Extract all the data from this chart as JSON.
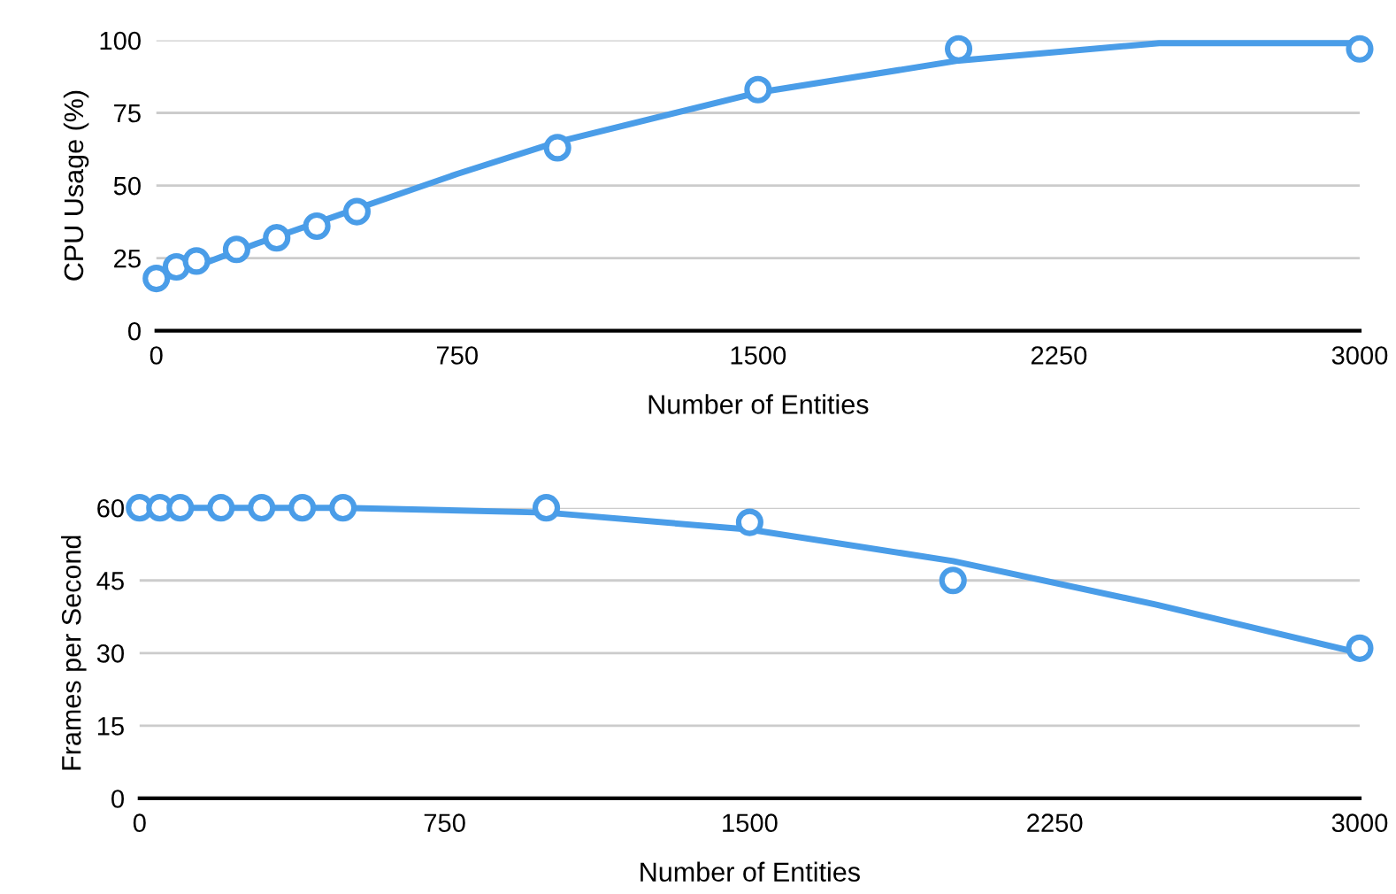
{
  "chart_data": [
    {
      "type": "scatter",
      "xlabel": "Number of Entities",
      "ylabel": "CPU Usage (%)",
      "xlim": [
        0,
        3000
      ],
      "xticks": [
        0,
        750,
        1500,
        2250,
        3000
      ],
      "ylim": [
        0,
        100
      ],
      "yticks": [
        0,
        25,
        50,
        75,
        100
      ],
      "grid": "y",
      "legend": false,
      "series": [
        {
          "color": "#4a9de8",
          "marker": "circle",
          "x": [
            0,
            50,
            100,
            200,
            300,
            400,
            500,
            1000,
            1500,
            2000,
            3000
          ],
          "values": [
            18,
            22,
            24,
            28,
            32,
            36,
            41,
            63,
            83,
            97,
            97
          ]
        },
        {
          "type": "line",
          "marker": "none",
          "color": "#4a9de8",
          "x": [
            0,
            250,
            500,
            750,
            1000,
            1500,
            2000,
            2500,
            3000
          ],
          "values": [
            17,
            30,
            42,
            54,
            65,
            82,
            93,
            99,
            99
          ]
        }
      ]
    },
    {
      "type": "scatter",
      "xlabel": "Number of Entities",
      "ylabel": "Frames per Second",
      "xlim": [
        0,
        3000
      ],
      "xticks": [
        0,
        750,
        1500,
        2250,
        3000
      ],
      "ylim": [
        0,
        60
      ],
      "yticks": [
        0,
        15,
        30,
        45,
        60
      ],
      "grid": "y",
      "legend": false,
      "series": [
        {
          "color": "#4a9de8",
          "marker": "circle",
          "x": [
            0,
            50,
            100,
            200,
            300,
            400,
            500,
            1000,
            1500,
            2000,
            3000
          ],
          "values": [
            60,
            60,
            60,
            60,
            60,
            60,
            60,
            60,
            57,
            45,
            31
          ]
        },
        {
          "type": "line",
          "marker": "none",
          "color": "#4a9de8",
          "x": [
            0,
            500,
            1000,
            1500,
            2000,
            2500,
            3000
          ],
          "values": [
            60,
            60,
            59,
            55.5,
            49,
            40,
            30
          ]
        }
      ]
    }
  ]
}
